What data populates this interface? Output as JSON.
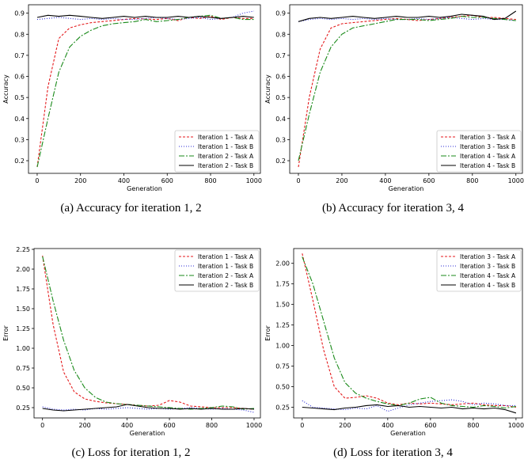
{
  "captions": [
    "(a) Accuracy for iteration 1, 2",
    "(b) Accuracy for iteration 3, 4",
    "(c) Loss for iteration 1, 2",
    "(d) Loss for iteration 3, 4"
  ],
  "series_styles": {
    "task_a_first": {
      "color": "#e41a1c",
      "dash": "3,2"
    },
    "task_b_first": {
      "color": "#2b2bd6",
      "dash": "1,2"
    },
    "task_a_second": {
      "color": "#1a8a1a",
      "dash": "7,2,2,2"
    },
    "task_b_second": {
      "color": "#000000",
      "dash": ""
    }
  },
  "chart_data": [
    {
      "type": "line",
      "xlabel": "Generation",
      "ylabel": "Accuracy",
      "xlim": [
        -40,
        1030
      ],
      "ylim": [
        0.14,
        0.94
      ],
      "xticks": [
        0,
        200,
        400,
        600,
        800,
        1000
      ],
      "yticks": [
        0.2,
        0.3,
        0.4,
        0.5,
        0.6,
        0.7,
        0.8,
        0.9
      ],
      "ytick_labels": [
        "0.2",
        "0.3",
        "0.4",
        "0.5",
        "0.6",
        "0.7",
        "0.8",
        "0.9"
      ],
      "legend_position": "lower-right",
      "x": [
        0,
        50,
        100,
        150,
        200,
        250,
        300,
        350,
        400,
        450,
        500,
        550,
        600,
        650,
        700,
        750,
        800,
        850,
        900,
        950,
        1000
      ],
      "series": [
        {
          "name": "Iteration 1 - Task A",
          "style": "task_a_first",
          "values": [
            0.17,
            0.55,
            0.78,
            0.83,
            0.845,
            0.855,
            0.86,
            0.865,
            0.87,
            0.875,
            0.872,
            0.87,
            0.875,
            0.865,
            0.88,
            0.875,
            0.885,
            0.87,
            0.88,
            0.875,
            0.875
          ]
        },
        {
          "name": "Iteration 1 - Task B",
          "style": "task_b_first",
          "values": [
            0.87,
            0.875,
            0.88,
            0.875,
            0.87,
            0.875,
            0.87,
            0.875,
            0.87,
            0.87,
            0.875,
            0.88,
            0.875,
            0.87,
            0.875,
            0.88,
            0.87,
            0.875,
            0.88,
            0.9,
            0.91
          ]
        },
        {
          "name": "Iteration 2 - Task A",
          "style": "task_a_second",
          "values": [
            0.17,
            0.4,
            0.62,
            0.74,
            0.79,
            0.82,
            0.84,
            0.85,
            0.855,
            0.86,
            0.87,
            0.86,
            0.865,
            0.87,
            0.88,
            0.885,
            0.89,
            0.875,
            0.88,
            0.87,
            0.87
          ]
        },
        {
          "name": "Iteration 2 - Task B",
          "style": "task_b_second",
          "values": [
            0.88,
            0.89,
            0.885,
            0.89,
            0.885,
            0.88,
            0.875,
            0.88,
            0.885,
            0.88,
            0.885,
            0.88,
            0.88,
            0.885,
            0.88,
            0.885,
            0.88,
            0.875,
            0.88,
            0.885,
            0.88
          ]
        }
      ]
    },
    {
      "type": "line",
      "xlabel": "Generation",
      "ylabel": "Accuracy",
      "xlim": [
        -40,
        1030
      ],
      "ylim": [
        0.14,
        0.94
      ],
      "xticks": [
        0,
        200,
        400,
        600,
        800,
        1000
      ],
      "yticks": [
        0.2,
        0.3,
        0.4,
        0.5,
        0.6,
        0.7,
        0.8,
        0.9
      ],
      "ytick_labels": [
        "0.2",
        "0.3",
        "0.4",
        "0.5",
        "0.6",
        "0.7",
        "0.8",
        "0.9"
      ],
      "legend_position": "lower-right",
      "x": [
        0,
        50,
        100,
        150,
        200,
        250,
        300,
        350,
        400,
        450,
        500,
        550,
        600,
        650,
        700,
        750,
        800,
        850,
        900,
        950,
        1000
      ],
      "series": [
        {
          "name": "Iteration 3 - Task A",
          "style": "task_a_first",
          "values": [
            0.17,
            0.5,
            0.73,
            0.83,
            0.85,
            0.855,
            0.86,
            0.865,
            0.87,
            0.875,
            0.87,
            0.865,
            0.87,
            0.875,
            0.88,
            0.885,
            0.89,
            0.88,
            0.88,
            0.875,
            0.87
          ]
        },
        {
          "name": "Iteration 3 - Task B",
          "style": "task_b_first",
          "values": [
            0.86,
            0.87,
            0.875,
            0.87,
            0.875,
            0.87,
            0.875,
            0.87,
            0.875,
            0.87,
            0.87,
            0.875,
            0.87,
            0.875,
            0.88,
            0.875,
            0.87,
            0.875,
            0.87,
            0.87,
            0.865
          ]
        },
        {
          "name": "Iteration 4 - Task A",
          "style": "task_a_second",
          "values": [
            0.2,
            0.42,
            0.62,
            0.74,
            0.8,
            0.83,
            0.84,
            0.85,
            0.86,
            0.87,
            0.87,
            0.87,
            0.865,
            0.87,
            0.875,
            0.885,
            0.88,
            0.88,
            0.875,
            0.87,
            0.865
          ]
        },
        {
          "name": "Iteration 4 - Task B",
          "style": "task_b_second",
          "values": [
            0.86,
            0.875,
            0.88,
            0.875,
            0.88,
            0.885,
            0.88,
            0.875,
            0.88,
            0.885,
            0.88,
            0.88,
            0.885,
            0.88,
            0.885,
            0.895,
            0.89,
            0.885,
            0.87,
            0.875,
            0.91
          ]
        }
      ]
    },
    {
      "type": "line",
      "xlabel": "Generation",
      "ylabel": "Error",
      "xlim": [
        -40,
        1030
      ],
      "ylim": [
        0.12,
        2.26
      ],
      "xticks": [
        0,
        200,
        400,
        600,
        800,
        1000
      ],
      "yticks": [
        0.25,
        0.5,
        0.75,
        1.0,
        1.25,
        1.5,
        1.75,
        2.0,
        2.25
      ],
      "ytick_labels": [
        "0.25",
        "0.50",
        "0.75",
        "1.00",
        "1.25",
        "1.50",
        "1.75",
        "2.00",
        "2.25"
      ],
      "legend_position": "top-right",
      "x": [
        0,
        50,
        100,
        150,
        200,
        250,
        300,
        350,
        400,
        450,
        500,
        550,
        600,
        650,
        700,
        750,
        800,
        850,
        900,
        950,
        1000
      ],
      "series": [
        {
          "name": "Iteration 1 - Task A",
          "style": "task_a_first",
          "values": [
            2.17,
            1.3,
            0.7,
            0.45,
            0.36,
            0.33,
            0.31,
            0.3,
            0.29,
            0.28,
            0.27,
            0.28,
            0.34,
            0.32,
            0.27,
            0.26,
            0.25,
            0.25,
            0.25,
            0.24,
            0.23
          ]
        },
        {
          "name": "Iteration 1 - Task B",
          "style": "task_b_first",
          "values": [
            0.26,
            0.23,
            0.22,
            0.23,
            0.22,
            0.24,
            0.23,
            0.24,
            0.25,
            0.24,
            0.23,
            0.24,
            0.23,
            0.24,
            0.25,
            0.24,
            0.23,
            0.24,
            0.23,
            0.22,
            0.19
          ]
        },
        {
          "name": "Iteration 2 - Task A",
          "style": "task_a_second",
          "values": [
            2.16,
            1.6,
            1.1,
            0.72,
            0.5,
            0.38,
            0.32,
            0.3,
            0.29,
            0.28,
            0.27,
            0.26,
            0.25,
            0.24,
            0.23,
            0.24,
            0.25,
            0.27,
            0.26,
            0.23,
            0.24
          ]
        },
        {
          "name": "Iteration 2 - Task B",
          "style": "task_b_second",
          "values": [
            0.24,
            0.22,
            0.21,
            0.22,
            0.23,
            0.24,
            0.25,
            0.26,
            0.29,
            0.27,
            0.25,
            0.24,
            0.24,
            0.23,
            0.24,
            0.23,
            0.24,
            0.23,
            0.23,
            0.24,
            0.23
          ]
        }
      ]
    },
    {
      "type": "line",
      "xlabel": "Generation",
      "ylabel": "Error",
      "xlim": [
        -40,
        1030
      ],
      "ylim": [
        0.12,
        2.18
      ],
      "xticks": [
        0,
        200,
        400,
        600,
        800,
        1000
      ],
      "yticks": [
        0.25,
        0.5,
        0.75,
        1.0,
        1.25,
        1.5,
        1.75,
        2.0
      ],
      "ytick_labels": [
        "0.25",
        "0.50",
        "0.75",
        "1.00",
        "1.25",
        "1.50",
        "1.75",
        "2.00"
      ],
      "legend_position": "top-right",
      "x": [
        0,
        50,
        100,
        150,
        200,
        250,
        300,
        350,
        400,
        450,
        500,
        550,
        600,
        650,
        700,
        750,
        800,
        850,
        900,
        950,
        1000
      ],
      "series": [
        {
          "name": "Iteration 3 - Task A",
          "style": "task_a_first",
          "values": [
            2.12,
            1.55,
            0.95,
            0.5,
            0.36,
            0.37,
            0.39,
            0.36,
            0.3,
            0.28,
            0.3,
            0.29,
            0.3,
            0.29,
            0.28,
            0.29,
            0.3,
            0.28,
            0.27,
            0.27,
            0.25
          ]
        },
        {
          "name": "Iteration 3 - Task B",
          "style": "task_b_first",
          "values": [
            0.33,
            0.25,
            0.24,
            0.23,
            0.22,
            0.24,
            0.23,
            0.27,
            0.2,
            0.24,
            0.28,
            0.3,
            0.32,
            0.33,
            0.34,
            0.32,
            0.28,
            0.3,
            0.29,
            0.27,
            0.27
          ]
        },
        {
          "name": "Iteration 4 - Task A",
          "style": "task_a_second",
          "values": [
            2.08,
            1.75,
            1.3,
            0.85,
            0.55,
            0.42,
            0.36,
            0.32,
            0.29,
            0.27,
            0.3,
            0.35,
            0.37,
            0.3,
            0.27,
            0.26,
            0.25,
            0.27,
            0.26,
            0.24,
            0.26
          ]
        },
        {
          "name": "Iteration 4 - Task B",
          "style": "task_b_second",
          "values": [
            0.25,
            0.24,
            0.23,
            0.22,
            0.24,
            0.25,
            0.27,
            0.28,
            0.26,
            0.27,
            0.25,
            0.26,
            0.25,
            0.24,
            0.25,
            0.23,
            0.24,
            0.23,
            0.24,
            0.22,
            0.18
          ]
        }
      ]
    }
  ]
}
